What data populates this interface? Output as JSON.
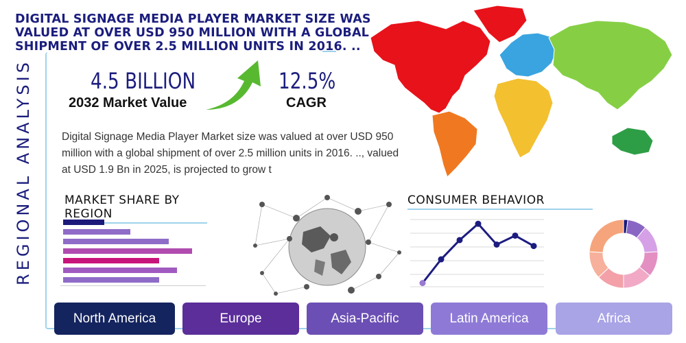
{
  "headline": [
    "Digital Signage Media Player Market size was",
    "valued at over USD 950 million with a global",
    "shipment of over 2.5 million units in 2016. .."
  ],
  "side_label": "REGIONAL ANALYSIS",
  "stats": {
    "market_value": "4.5 BILLION",
    "market_value_label": "2032 Market Value",
    "cagr": "12.5%",
    "cagr_label": "CAGR"
  },
  "description": "Digital Signage Media Player Market size was valued at over USD 950 million with a global shipment of over 2.5 million units in 2016. .., valued at USD 1.9 Bn in 2025, is projected to grow t",
  "market_share": {
    "title": "MARKET SHARE BY REGION",
    "bars": [
      {
        "value": 0.3,
        "color": "#1b1a7a"
      },
      {
        "value": 0.49,
        "color": "#8f6cc8"
      },
      {
        "value": 0.77,
        "color": "#8f6cc8"
      },
      {
        "value": 0.94,
        "color": "#b04cb0"
      },
      {
        "value": 0.7,
        "color": "#c8157a"
      },
      {
        "value": 0.83,
        "color": "#a05ac0"
      },
      {
        "value": 0.7,
        "color": "#8f6cc8"
      }
    ]
  },
  "consumer_behavior": {
    "title": "CONSUMER BEHAVIOR",
    "line_values": [
      0.05,
      0.37,
      0.63,
      0.85,
      0.57,
      0.69,
      0.55
    ],
    "donut": [
      {
        "value": 2,
        "color": "#1b1a7a"
      },
      {
        "value": 9,
        "color": "#8a66c4"
      },
      {
        "value": 13,
        "color": "#d5a0e6"
      },
      {
        "value": 12,
        "color": "#e38fc2"
      },
      {
        "value": 14,
        "color": "#f2a9c5"
      },
      {
        "value": 13,
        "color": "#f3a0a8"
      },
      {
        "value": 13,
        "color": "#f6b09c"
      },
      {
        "value": 24,
        "color": "#f6a47c"
      }
    ]
  },
  "regions": [
    {
      "label": "North America",
      "color": "#14245e"
    },
    {
      "label": "Europe",
      "color": "#5b2e9a"
    },
    {
      "label": "Asia-Pacific",
      "color": "#6b4fb4"
    },
    {
      "label": "Latin America",
      "color": "#8e7ad6"
    },
    {
      "label": "Africa",
      "color": "#a9a4e6"
    }
  ],
  "map_colors": {
    "north_america": "#e8121a",
    "south_america": "#f07820",
    "europe": "#3aa4e0",
    "asia": "#86cf45",
    "africa": "#f3c030",
    "australia": "#2e9e46",
    "greenland": "#e8121a"
  },
  "arrow_color": "#58b930",
  "frame_color": "#9fd2ec"
}
